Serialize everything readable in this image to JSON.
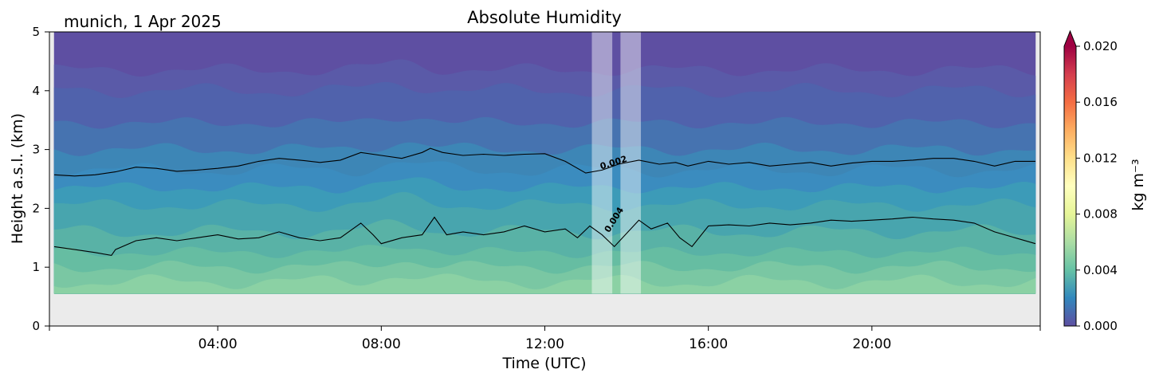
{
  "chart_data": {
    "type": "heatmap",
    "title": "Absolute Humidity",
    "location_date": "munich, 1 Apr 2025",
    "xlabel": "Time (UTC)",
    "ylabel": "Height a.s.l. (km)",
    "xlim_hours": [
      0,
      24
    ],
    "ylim_km": [
      0,
      5
    ],
    "x_ticks": [
      {
        "hour": 4,
        "label": "04:00"
      },
      {
        "hour": 8,
        "label": "08:00"
      },
      {
        "hour": 12,
        "label": "12:00"
      },
      {
        "hour": 16,
        "label": "16:00"
      },
      {
        "hour": 20,
        "label": "20:00"
      }
    ],
    "y_ticks": [
      {
        "value": 0,
        "label": "0"
      },
      {
        "value": 1,
        "label": "1"
      },
      {
        "value": 2,
        "label": "2"
      },
      {
        "value": 3,
        "label": "3"
      },
      {
        "value": 4,
        "label": "4"
      },
      {
        "value": 5,
        "label": "5"
      }
    ],
    "data_bottom_km": 0.55,
    "gap_periods_hours": [
      [
        13.15,
        13.65
      ],
      [
        13.85,
        14.35
      ]
    ],
    "colorbar": {
      "label": "kg m⁻³",
      "range": [
        0.0,
        0.02
      ],
      "extend": "max",
      "ticks": [
        "0.000",
        "0.004",
        "0.008",
        "0.012",
        "0.016",
        "0.020"
      ],
      "colormap": "Spectral_r"
    },
    "contour_labels": [
      {
        "level": "0.002",
        "hour": 13.7,
        "height_km": 2.73
      },
      {
        "level": "0.004",
        "hour": 13.75,
        "height_km": 1.78
      }
    ],
    "contour_002_km": [
      [
        0.0,
        2.57
      ],
      [
        0.5,
        2.55
      ],
      [
        1.0,
        2.57
      ],
      [
        1.5,
        2.62
      ],
      [
        2.0,
        2.7
      ],
      [
        2.5,
        2.68
      ],
      [
        3.0,
        2.63
      ],
      [
        3.5,
        2.65
      ],
      [
        4.0,
        2.68
      ],
      [
        4.5,
        2.72
      ],
      [
        5.0,
        2.8
      ],
      [
        5.5,
        2.85
      ],
      [
        6.0,
        2.82
      ],
      [
        6.5,
        2.78
      ],
      [
        7.0,
        2.82
      ],
      [
        7.5,
        2.95
      ],
      [
        8.0,
        2.9
      ],
      [
        8.5,
        2.85
      ],
      [
        9.0,
        2.95
      ],
      [
        9.2,
        3.02
      ],
      [
        9.5,
        2.95
      ],
      [
        10.0,
        2.9
      ],
      [
        10.5,
        2.92
      ],
      [
        11.0,
        2.9
      ],
      [
        11.5,
        2.92
      ],
      [
        12.0,
        2.93
      ],
      [
        12.5,
        2.8
      ],
      [
        13.0,
        2.6
      ],
      [
        13.4,
        2.65
      ],
      [
        13.8,
        2.75
      ],
      [
        14.3,
        2.82
      ],
      [
        14.8,
        2.75
      ],
      [
        15.2,
        2.78
      ],
      [
        15.5,
        2.72
      ],
      [
        16.0,
        2.8
      ],
      [
        16.5,
        2.75
      ],
      [
        17.0,
        2.78
      ],
      [
        17.5,
        2.72
      ],
      [
        18.0,
        2.75
      ],
      [
        18.5,
        2.78
      ],
      [
        19.0,
        2.72
      ],
      [
        19.5,
        2.77
      ],
      [
        20.0,
        2.8
      ],
      [
        20.5,
        2.8
      ],
      [
        21.0,
        2.82
      ],
      [
        21.5,
        2.85
      ],
      [
        22.0,
        2.85
      ],
      [
        22.5,
        2.8
      ],
      [
        23.0,
        2.72
      ],
      [
        23.5,
        2.8
      ],
      [
        24.0,
        2.8
      ]
    ],
    "contour_004_km": [
      [
        0.0,
        1.35
      ],
      [
        0.5,
        1.3
      ],
      [
        1.0,
        1.25
      ],
      [
        1.4,
        1.2
      ],
      [
        1.5,
        1.3
      ],
      [
        2.0,
        1.45
      ],
      [
        2.5,
        1.5
      ],
      [
        3.0,
        1.45
      ],
      [
        3.5,
        1.5
      ],
      [
        4.0,
        1.55
      ],
      [
        4.5,
        1.48
      ],
      [
        5.0,
        1.5
      ],
      [
        5.5,
        1.6
      ],
      [
        6.0,
        1.5
      ],
      [
        6.5,
        1.45
      ],
      [
        7.0,
        1.5
      ],
      [
        7.5,
        1.75
      ],
      [
        7.8,
        1.55
      ],
      [
        8.0,
        1.4
      ],
      [
        8.5,
        1.5
      ],
      [
        9.0,
        1.55
      ],
      [
        9.3,
        1.85
      ],
      [
        9.6,
        1.55
      ],
      [
        10.0,
        1.6
      ],
      [
        10.5,
        1.55
      ],
      [
        11.0,
        1.6
      ],
      [
        11.5,
        1.7
      ],
      [
        12.0,
        1.6
      ],
      [
        12.5,
        1.65
      ],
      [
        12.8,
        1.5
      ],
      [
        13.1,
        1.7
      ],
      [
        13.4,
        1.55
      ],
      [
        13.7,
        1.35
      ],
      [
        14.3,
        1.8
      ],
      [
        14.6,
        1.65
      ],
      [
        15.0,
        1.75
      ],
      [
        15.3,
        1.5
      ],
      [
        15.6,
        1.35
      ],
      [
        16.0,
        1.7
      ],
      [
        16.5,
        1.72
      ],
      [
        17.0,
        1.7
      ],
      [
        17.5,
        1.75
      ],
      [
        18.0,
        1.72
      ],
      [
        18.5,
        1.75
      ],
      [
        19.0,
        1.8
      ],
      [
        19.5,
        1.78
      ],
      [
        20.0,
        1.8
      ],
      [
        20.5,
        1.82
      ],
      [
        21.0,
        1.85
      ],
      [
        21.5,
        1.82
      ],
      [
        22.0,
        1.8
      ],
      [
        22.5,
        1.75
      ],
      [
        23.0,
        1.6
      ],
      [
        23.5,
        1.5
      ],
      [
        24.0,
        1.4
      ]
    ],
    "fill_bands_km": [
      {
        "color": "#5e4fa2",
        "level_km": 5.0
      },
      {
        "color": "#5a5aa8",
        "level_km": 4.35
      },
      {
        "color": "#5062ac",
        "level_km": 4.0
      },
      {
        "color": "#4673b0",
        "level_km": 3.45
      },
      {
        "color": "#3d86b6",
        "level_km": 3.0
      },
      {
        "color": "#3b8cbf",
        "level_km": 2.65
      },
      {
        "color": "#3c9bb8",
        "level_km": 2.35
      },
      {
        "color": "#48a5ae",
        "level_km": 2.05
      },
      {
        "color": "#59b2a6",
        "level_km": 1.6
      },
      {
        "color": "#66bda2",
        "level_km": 1.25
      },
      {
        "color": "#7ac7a3",
        "level_km": 1.0
      },
      {
        "color": "#8bd1a4",
        "level_km": 0.75
      }
    ]
  }
}
